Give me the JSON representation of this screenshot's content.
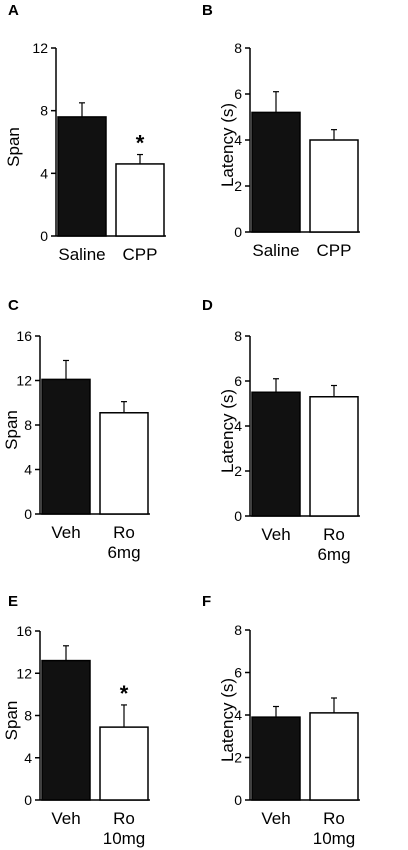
{
  "chart_data": [
    {
      "panel": "A",
      "type": "bar",
      "ylabel": "Span",
      "ylim": [
        0,
        12
      ],
      "yticks": [
        0,
        4,
        8,
        12
      ],
      "categories": [
        [
          "Saline"
        ],
        [
          "CPP"
        ]
      ],
      "values": [
        7.6,
        4.6
      ],
      "errors": [
        0.9,
        0.6
      ],
      "fills": [
        "#111111",
        "#ffffff"
      ],
      "significance": [
        "",
        "*"
      ]
    },
    {
      "panel": "B",
      "type": "bar",
      "ylabel": "Latency (s)",
      "ylim": [
        0,
        8
      ],
      "yticks": [
        0,
        2,
        4,
        6,
        8
      ],
      "categories": [
        [
          "Saline"
        ],
        [
          "CPP"
        ]
      ],
      "values": [
        5.2,
        4.0
      ],
      "errors": [
        0.9,
        0.45
      ],
      "fills": [
        "#111111",
        "#ffffff"
      ],
      "significance": [
        "",
        ""
      ]
    },
    {
      "panel": "C",
      "type": "bar",
      "ylabel": "Span",
      "ylim": [
        0,
        16
      ],
      "yticks": [
        0,
        4,
        8,
        12,
        16
      ],
      "categories": [
        [
          "Veh"
        ],
        [
          "Ro",
          "6mg"
        ]
      ],
      "values": [
        12.1,
        9.1
      ],
      "errors": [
        1.7,
        1.0
      ],
      "fills": [
        "#111111",
        "#ffffff"
      ],
      "significance": [
        "",
        ""
      ]
    },
    {
      "panel": "D",
      "type": "bar",
      "ylabel": "Latency (s)",
      "ylim": [
        0,
        8
      ],
      "yticks": [
        0,
        2,
        4,
        6,
        8
      ],
      "categories": [
        [
          "Veh"
        ],
        [
          "Ro",
          "6mg"
        ]
      ],
      "values": [
        5.5,
        5.3
      ],
      "errors": [
        0.6,
        0.5
      ],
      "fills": [
        "#111111",
        "#ffffff"
      ],
      "significance": [
        "",
        ""
      ]
    },
    {
      "panel": "E",
      "type": "bar",
      "ylabel": "Span",
      "ylim": [
        0,
        16
      ],
      "yticks": [
        0,
        4,
        8,
        12,
        16
      ],
      "categories": [
        [
          "Veh"
        ],
        [
          "Ro",
          "10mg"
        ]
      ],
      "values": [
        13.2,
        6.9
      ],
      "errors": [
        1.4,
        2.1
      ],
      "fills": [
        "#111111",
        "#ffffff"
      ],
      "significance": [
        "",
        "*"
      ]
    },
    {
      "panel": "F",
      "type": "bar",
      "ylabel": "Latency (s)",
      "ylim": [
        0,
        8
      ],
      "yticks": [
        0,
        2,
        4,
        6,
        8
      ],
      "categories": [
        [
          "Veh"
        ],
        [
          "Ro",
          "10mg"
        ]
      ],
      "values": [
        3.9,
        4.1
      ],
      "errors": [
        0.5,
        0.7
      ],
      "fills": [
        "#111111",
        "#ffffff"
      ],
      "significance": [
        "",
        ""
      ]
    }
  ]
}
